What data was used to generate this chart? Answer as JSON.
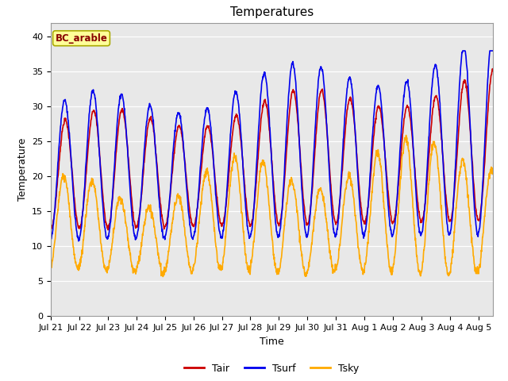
{
  "title": "Temperatures",
  "xlabel": "Time",
  "ylabel": "Temperature",
  "annotation": "BC_arable",
  "ylim": [
    0,
    42
  ],
  "xlim_days": [
    0,
    15.5
  ],
  "legend": [
    {
      "label": "Tair",
      "color": "#cc0000"
    },
    {
      "label": "Tsurf",
      "color": "#0000ee"
    },
    {
      "label": "Tsky",
      "color": "#ffaa00"
    }
  ],
  "x_ticks": [
    0,
    1,
    2,
    3,
    4,
    5,
    6,
    7,
    8,
    9,
    10,
    11,
    12,
    13,
    14,
    15
  ],
  "x_tick_labels": [
    "Jul 21",
    "Jul 22",
    "Jul 23",
    "Jul 24",
    "Jul 25",
    "Jul 26",
    "Jul 27",
    "Jul 28",
    "Jul 29",
    "Jul 30",
    "Jul 31",
    "Aug 1",
    "Aug 2",
    "Aug 3",
    "Aug 4",
    "Aug 5"
  ],
  "yticks": [
    0,
    5,
    10,
    15,
    20,
    25,
    30,
    35,
    40
  ],
  "axes_bg_color": "#e8e8e8",
  "fig_bg_color": "#ffffff",
  "title_fontsize": 11,
  "annotation_bg": "#ffff99",
  "annotation_border": "#aaaa00",
  "linewidth": 1.2,
  "n_points": 1500
}
